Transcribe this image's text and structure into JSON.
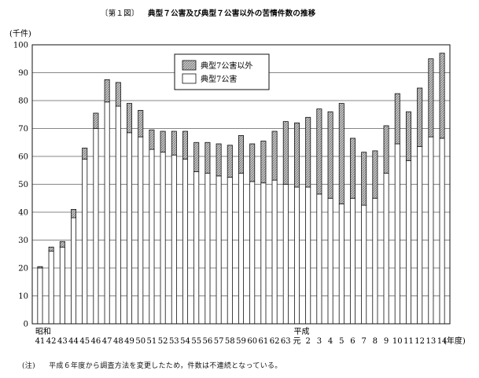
{
  "chart_data": {
    "type": "bar",
    "stacked": true,
    "figure_label": "〔第１図〕",
    "title": "典型７公害及び典型７公害以外の苦情件数の推移",
    "ylabel": "(千件)",
    "xlabel": "(年度)",
    "ylim": [
      0,
      100
    ],
    "yticks": [
      0,
      10,
      20,
      30,
      40,
      50,
      60,
      70,
      80,
      90,
      100
    ],
    "era_labels": [
      {
        "text": "昭和",
        "at_category": "41"
      },
      {
        "text": "平成",
        "at_category": "元"
      }
    ],
    "categories": [
      "41",
      "42",
      "43",
      "44",
      "45",
      "46",
      "47",
      "48",
      "49",
      "50",
      "51",
      "52",
      "53",
      "54",
      "55",
      "56",
      "57",
      "58",
      "59",
      "60",
      "61",
      "62",
      "63",
      "元",
      "2",
      "3",
      "4",
      "5",
      "6",
      "7",
      "8",
      "9",
      "10",
      "11",
      "12",
      "13",
      "14"
    ],
    "series": [
      {
        "name": "典型7公害",
        "fill": "#ffffff",
        "values": [
          20,
          26,
          27.5,
          38,
          59,
          70,
          79.5,
          78,
          68.5,
          67,
          62.5,
          61.5,
          60.5,
          59,
          54.5,
          54,
          53,
          52.5,
          54,
          51,
          50.5,
          51.5,
          50,
          49,
          49,
          46.5,
          45,
          43,
          45,
          42.5,
          45,
          54,
          64.5,
          58.5,
          63.5,
          67,
          66.5
        ]
      },
      {
        "name": "典型7公害以外",
        "fill": "hatched",
        "values": [
          0.5,
          1.5,
          2,
          3,
          4,
          5.5,
          8,
          8.5,
          10.5,
          9.5,
          7,
          7.5,
          8.5,
          10,
          10.5,
          11,
          11.5,
          11.5,
          13.5,
          13.5,
          15,
          17.5,
          22.5,
          23,
          25,
          30.5,
          31,
          36,
          21.5,
          19,
          17,
          17,
          18,
          17.5,
          21,
          28,
          30.5
        ]
      }
    ],
    "legend": {
      "placement": "top-center"
    },
    "grid": "horizontal",
    "note_prefix": "(注)",
    "note": "平成６年度から調査方法を変更したため，件数は不連続となっている。"
  },
  "colors": {
    "ink": "#111111",
    "bar_fill": "#ffffff",
    "hatch": "#9a9a9a"
  }
}
